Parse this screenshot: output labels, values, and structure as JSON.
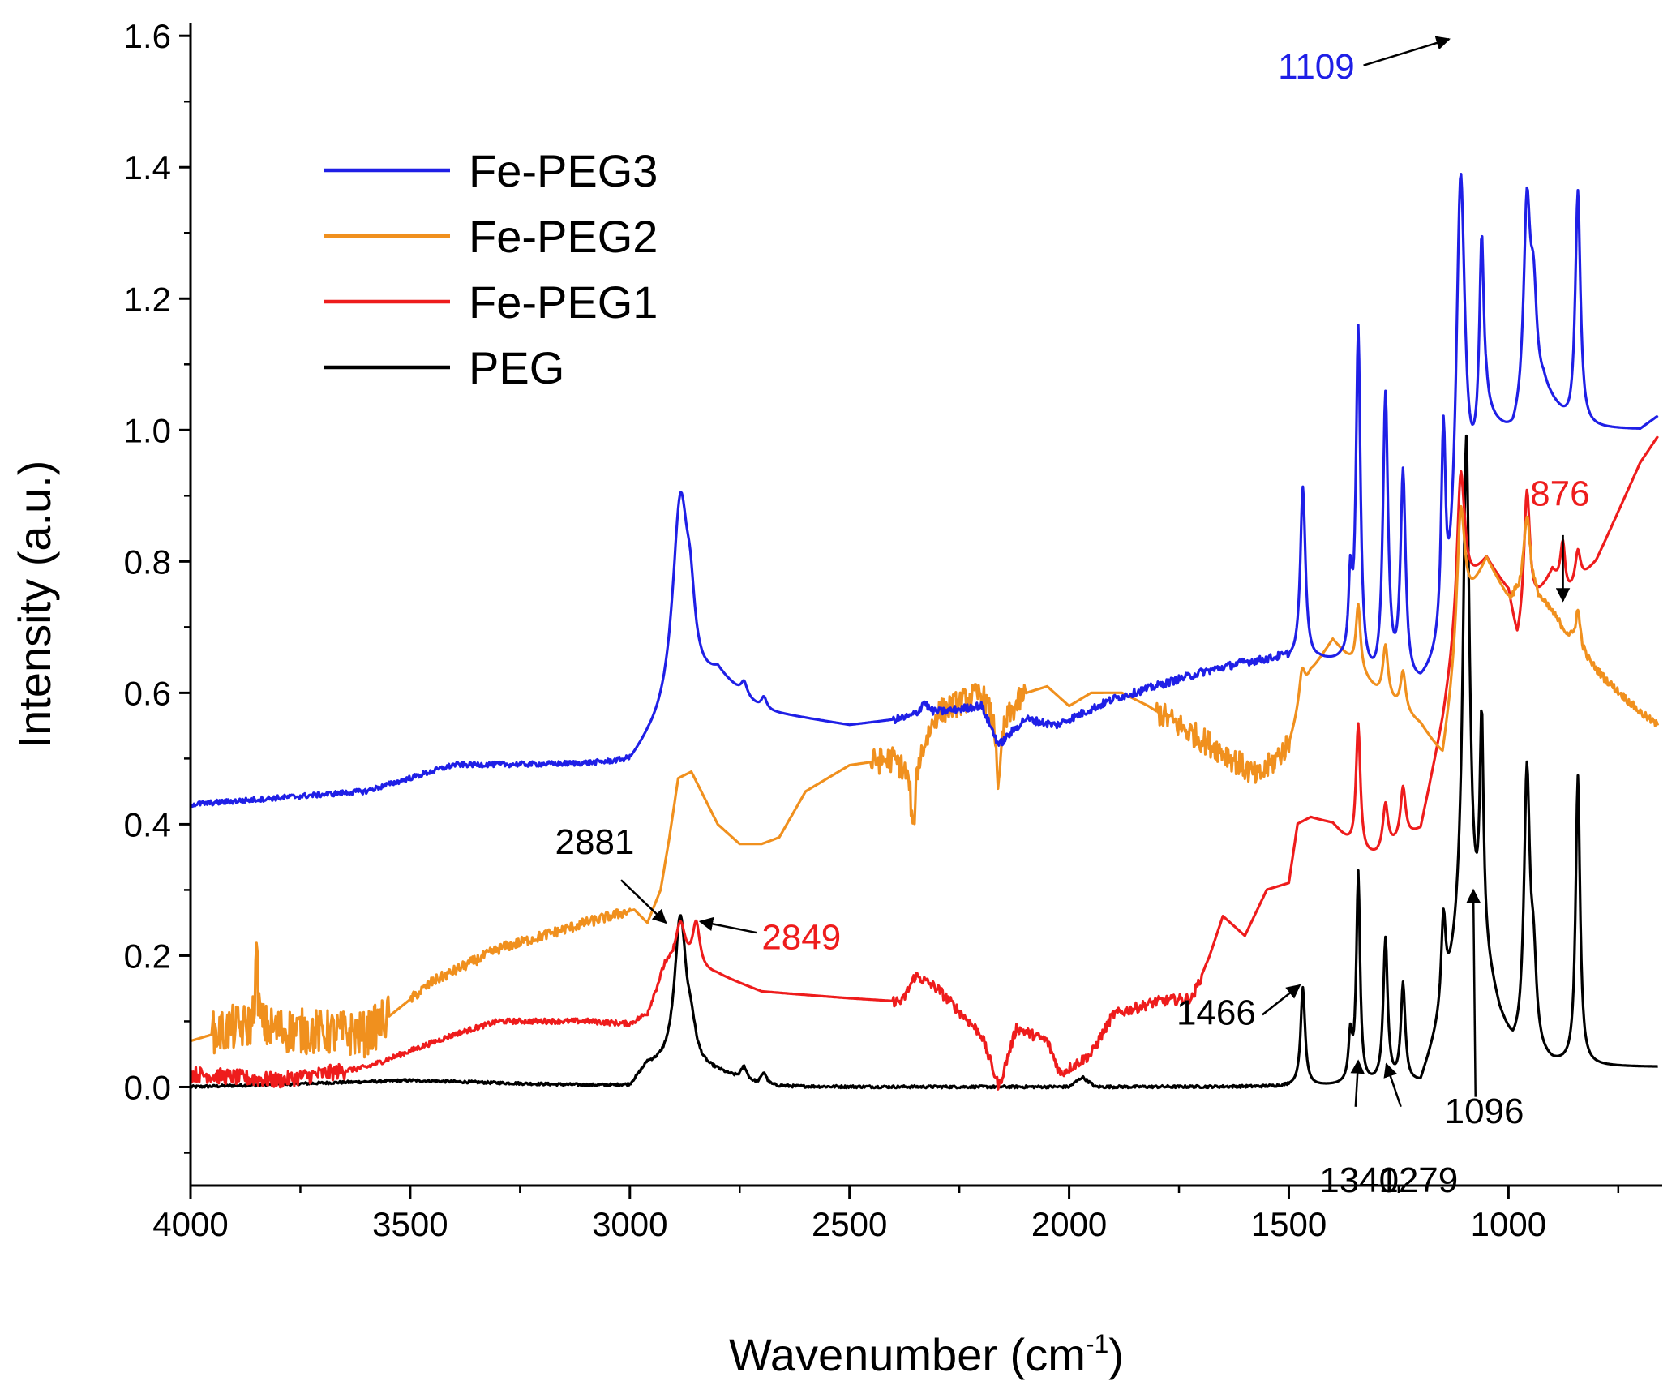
{
  "chart_data": {
    "type": "line",
    "title": "",
    "xlabel": "Wavenumber (cm",
    "xlabel_sup": "-1",
    "xlabel_close": ")",
    "ylabel": "Intensity (a.u.)",
    "xlim": [
      4000,
      650
    ],
    "ylim": [
      -0.15,
      1.62
    ],
    "x_ticks": [
      4000,
      3500,
      3000,
      2500,
      2000,
      1500,
      1000
    ],
    "x_tick_labels": [
      "4000",
      "3500",
      "3000",
      "2500",
      "2000",
      "1500",
      "1000"
    ],
    "y_ticks": [
      0.0,
      0.2,
      0.4,
      0.6,
      0.8,
      1.0,
      1.2,
      1.4,
      1.6
    ],
    "y_tick_labels": [
      "0.0",
      "0.2",
      "0.4",
      "0.6",
      "0.8",
      "1.0",
      "1.2",
      "1.4",
      "1.6"
    ],
    "grid": false,
    "legend_position": "top-left",
    "series": [
      {
        "name": "Fe-PEG3",
        "color": "#1f1fe6",
        "baseline": [
          [
            4000,
            0.43
          ],
          [
            3600,
            0.45
          ],
          [
            3400,
            0.49
          ],
          [
            3000,
            0.49
          ],
          [
            2960,
            0.52
          ],
          [
            2800,
            0.62
          ],
          [
            2700,
            0.57
          ],
          [
            2500,
            0.55
          ],
          [
            2380,
            0.56
          ],
          [
            2200,
            0.58
          ],
          [
            2160,
            0.52
          ],
          [
            2100,
            0.56
          ],
          [
            2030,
            0.55
          ],
          [
            1900,
            0.59
          ],
          [
            1800,
            0.61
          ],
          [
            1700,
            0.63
          ],
          [
            1600,
            0.645
          ],
          [
            1520,
            0.65
          ],
          [
            1470,
            0.64
          ],
          [
            1430,
            0.645
          ],
          [
            1380,
            0.64
          ],
          [
            1300,
            0.6
          ],
          [
            1200,
            0.6
          ],
          [
            1140,
            0.65
          ],
          [
            1090,
            0.85
          ],
          [
            1050,
            1.0
          ],
          [
            990,
            0.98
          ],
          [
            920,
            1.05
          ],
          [
            860,
            1.0
          ],
          [
            800,
            1.0
          ],
          [
            700,
            1.0
          ],
          [
            660,
            1.02
          ]
        ],
        "peaks": [
          [
            2885,
            0.32,
            22
          ],
          [
            2862,
            0.08,
            12
          ],
          [
            2740,
            0.02,
            8
          ],
          [
            2695,
            0.02,
            8
          ],
          [
            2330,
            0.02,
            10
          ],
          [
            1468,
            0.27,
            7
          ],
          [
            1360,
            0.12,
            5
          ],
          [
            1342,
            0.52,
            6
          ],
          [
            1280,
            0.44,
            7
          ],
          [
            1240,
            0.32,
            7
          ],
          [
            1148,
            0.32,
            6
          ],
          [
            1109,
            0.6,
            12
          ],
          [
            1061,
            0.3,
            6
          ],
          [
            958,
            0.31,
            9
          ],
          [
            943,
            0.15,
            9
          ],
          [
            842,
            0.36,
            7
          ]
        ],
        "noise": [
          [
            4000,
            3000,
            0.004
          ],
          [
            2400,
            1500,
            0.006
          ]
        ]
      },
      {
        "name": "Fe-PEG2",
        "color": "#f0901e",
        "baseline": [
          [
            4000,
            0.07
          ],
          [
            3900,
            0.09
          ],
          [
            3600,
            0.08
          ],
          [
            3450,
            0.16
          ],
          [
            3300,
            0.21
          ],
          [
            3100,
            0.25
          ],
          [
            2990,
            0.27
          ],
          [
            2960,
            0.25
          ],
          [
            2930,
            0.3
          ],
          [
            2910,
            0.38
          ],
          [
            2890,
            0.47
          ],
          [
            2860,
            0.48
          ],
          [
            2800,
            0.4
          ],
          [
            2750,
            0.37
          ],
          [
            2700,
            0.37
          ],
          [
            2660,
            0.38
          ],
          [
            2600,
            0.45
          ],
          [
            2500,
            0.49
          ],
          [
            2400,
            0.5
          ],
          [
            2360,
            0.48
          ],
          [
            2300,
            0.57
          ],
          [
            2200,
            0.6
          ],
          [
            2160,
            0.55
          ],
          [
            2100,
            0.6
          ],
          [
            2050,
            0.61
          ],
          [
            2000,
            0.58
          ],
          [
            1950,
            0.6
          ],
          [
            1880,
            0.6
          ],
          [
            1820,
            0.58
          ],
          [
            1750,
            0.55
          ],
          [
            1650,
            0.51
          ],
          [
            1570,
            0.47
          ],
          [
            1500,
            0.52
          ],
          [
            1450,
            0.63
          ],
          [
            1400,
            0.68
          ],
          [
            1300,
            0.6
          ],
          [
            1200,
            0.55
          ],
          [
            1150,
            0.5
          ],
          [
            1100,
            0.72
          ],
          [
            1050,
            0.8
          ],
          [
            1000,
            0.74
          ],
          [
            950,
            0.75
          ],
          [
            900,
            0.72
          ],
          [
            850,
            0.67
          ],
          [
            780,
            0.62
          ],
          [
            700,
            0.57
          ],
          [
            660,
            0.55
          ]
        ],
        "peaks": [
          [
            3850,
            0.11,
            4
          ],
          [
            2355,
            -0.1,
            5
          ],
          [
            2160,
            -0.1,
            5
          ],
          [
            1470,
            0.05,
            8
          ],
          [
            1342,
            0.1,
            6
          ],
          [
            1280,
            0.08,
            7
          ],
          [
            1240,
            0.06,
            7
          ],
          [
            1109,
            0.2,
            10
          ],
          [
            958,
            0.12,
            9
          ],
          [
            842,
            0.06,
            7
          ]
        ],
        "noise": [
          [
            3950,
            3550,
            0.035
          ],
          [
            2450,
            2100,
            0.02
          ],
          [
            1800,
            1500,
            0.02
          ],
          [
            3500,
            3000,
            0.008
          ],
          [
            1000,
            660,
            0.006
          ]
        ]
      },
      {
        "name": "Fe-PEG1",
        "color": "#ee1c1c",
        "baseline": [
          [
            4000,
            0.02
          ],
          [
            3800,
            0.01
          ],
          [
            3600,
            0.03
          ],
          [
            3400,
            0.08
          ],
          [
            3300,
            0.1
          ],
          [
            3100,
            0.1
          ],
          [
            3000,
            0.095
          ],
          [
            2960,
            0.11
          ],
          [
            2920,
            0.18
          ],
          [
            2800,
            0.17
          ],
          [
            2700,
            0.145
          ],
          [
            2500,
            0.135
          ],
          [
            2380,
            0.13
          ],
          [
            2350,
            0.17
          ],
          [
            2300,
            0.15
          ],
          [
            2200,
            0.08
          ],
          [
            2160,
            0.0
          ],
          [
            2120,
            0.09
          ],
          [
            2050,
            0.07
          ],
          [
            2020,
            0.02
          ],
          [
            1950,
            0.05
          ],
          [
            1900,
            0.11
          ],
          [
            1800,
            0.13
          ],
          [
            1720,
            0.135
          ],
          [
            1680,
            0.2
          ],
          [
            1650,
            0.26
          ],
          [
            1600,
            0.23
          ],
          [
            1550,
            0.3
          ],
          [
            1500,
            0.31
          ],
          [
            1480,
            0.4
          ],
          [
            1450,
            0.41
          ],
          [
            1400,
            0.4
          ],
          [
            1340,
            0.35
          ],
          [
            1300,
            0.35
          ],
          [
            1200,
            0.39
          ],
          [
            1150,
            0.55
          ],
          [
            1100,
            0.75
          ],
          [
            1050,
            0.8
          ],
          [
            1000,
            0.75
          ],
          [
            980,
            0.67
          ],
          [
            950,
            0.72
          ],
          [
            900,
            0.78
          ],
          [
            870,
            0.74
          ],
          [
            800,
            0.8
          ],
          [
            700,
            0.95
          ],
          [
            660,
            0.99
          ]
        ],
        "peaks": [
          [
            2885,
            0.07,
            14
          ],
          [
            2849,
            0.07,
            10
          ],
          [
            1342,
            0.2,
            6
          ],
          [
            1280,
            0.07,
            7
          ],
          [
            1240,
            0.08,
            7
          ],
          [
            1109,
            0.22,
            10
          ],
          [
            958,
            0.2,
            8
          ],
          [
            876,
            0.08,
            7
          ],
          [
            842,
            0.05,
            7
          ]
        ],
        "noise": [
          [
            4000,
            3650,
            0.012
          ],
          [
            2400,
            1700,
            0.008
          ],
          [
            3650,
            2900,
            0.004
          ]
        ]
      },
      {
        "name": "PEG",
        "color": "#000000",
        "baseline": [
          [
            4000,
            0.0
          ],
          [
            3500,
            0.01
          ],
          [
            3000,
            0.0
          ],
          [
            2960,
            0.03
          ],
          [
            2800,
            0.02
          ],
          [
            2700,
            0.0
          ],
          [
            2000,
            0.0
          ],
          [
            1970,
            0.015
          ],
          [
            1940,
            0.0
          ],
          [
            1200,
            0.0
          ],
          [
            1150,
            0.1
          ],
          [
            1110,
            0.2
          ],
          [
            1060,
            0.2
          ],
          [
            1020,
            0.1
          ],
          [
            990,
            0.05
          ],
          [
            900,
            0.03
          ],
          [
            800,
            0.03
          ],
          [
            660,
            0.03
          ]
        ],
        "peaks": [
          [
            2885,
            0.23,
            16
          ],
          [
            2860,
            0.04,
            12
          ],
          [
            2740,
            0.02,
            8
          ],
          [
            2695,
            0.02,
            8
          ],
          [
            1468,
            0.15,
            6
          ],
          [
            1360,
            0.07,
            5
          ],
          [
            1342,
            0.32,
            5
          ],
          [
            1280,
            0.22,
            6
          ],
          [
            1240,
            0.15,
            6
          ],
          [
            1148,
            0.14,
            6
          ],
          [
            1096,
            0.78,
            9
          ],
          [
            1061,
            0.33,
            5
          ],
          [
            958,
            0.42,
            8
          ],
          [
            943,
            0.12,
            8
          ],
          [
            842,
            0.44,
            6
          ]
        ],
        "noise": [
          [
            4000,
            1500,
            0.002
          ]
        ]
      }
    ],
    "annotations": [
      {
        "text": "1109",
        "color": "#1f1fe6",
        "text_xy": [
          1350,
          1.535
        ],
        "anchor": "end",
        "arrow_from": [
          1330,
          1.555
        ],
        "arrow_to": [
          1135,
          1.595
        ]
      },
      {
        "text": "876",
        "color": "#ee1c1c",
        "text_xy": [
          815,
          0.885
        ],
        "anchor": "end",
        "arrow_from": [
          876,
          0.84
        ],
        "arrow_to": [
          876,
          0.74
        ]
      },
      {
        "text": "2881",
        "color": "#000000",
        "text_xy": [
          3080,
          0.355
        ],
        "anchor": "middle",
        "arrow_from": [
          3020,
          0.315
        ],
        "arrow_to": [
          2918,
          0.25
        ]
      },
      {
        "text": "2849",
        "color": "#ee1c1c",
        "text_xy": [
          2700,
          0.21
        ],
        "anchor": "start",
        "arrow_from": [
          2712,
          0.235
        ],
        "arrow_to": [
          2840,
          0.252
        ]
      },
      {
        "text": "1466",
        "color": "#000000",
        "text_xy": [
          1575,
          0.095
        ],
        "anchor": "end",
        "arrow_from": [
          1560,
          0.11
        ],
        "arrow_to": [
          1475,
          0.155
        ]
      },
      {
        "text": "1340",
        "color": "#000000",
        "text_xy": [
          1340,
          -0.16
        ],
        "anchor": "middle",
        "arrow_from": [
          1348,
          -0.03
        ],
        "arrow_to": [
          1342,
          0.04
        ]
      },
      {
        "text": "1279",
        "color": "#000000",
        "text_xy": [
          1205,
          -0.16
        ],
        "anchor": "middle",
        "arrow_from": [
          1245,
          -0.03
        ],
        "arrow_to": [
          1278,
          0.035
        ]
      },
      {
        "text": "1096",
        "color": "#000000",
        "text_xy": [
          1055,
          -0.055
        ],
        "anchor": "middle",
        "arrow_from": [
          1075,
          -0.015
        ],
        "arrow_to": [
          1080,
          0.3
        ]
      }
    ]
  }
}
